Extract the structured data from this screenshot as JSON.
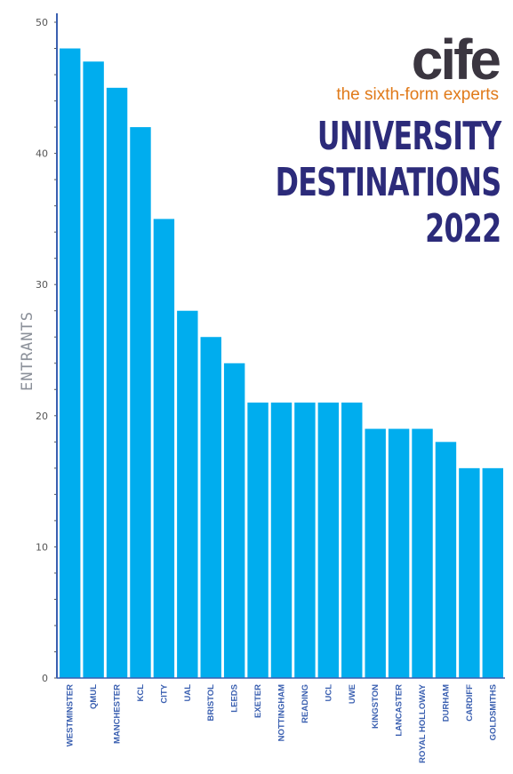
{
  "brand": {
    "logo": "cife",
    "tagline": "the sixth-form experts"
  },
  "headline": {
    "line1": "UNIVERSITY",
    "line2": "DESTINATIONS",
    "line3": "2022"
  },
  "colors": {
    "bar": "#00adee",
    "axis": "#3a5fb0",
    "headline": "#2c2b7a",
    "tagline": "#e07a1a",
    "logo": "#3b3640"
  },
  "chart_data": {
    "type": "bar",
    "ylabel": "ENTRANTS",
    "xlabel": "",
    "ylim": [
      0,
      50
    ],
    "yticks": [
      0,
      10,
      20,
      30,
      40,
      50
    ],
    "grid": false,
    "categories": [
      "WESTMINSTER",
      "QMUL",
      "MANCHESTER",
      "KCL",
      "CITY",
      "UAL",
      "BRISTOL",
      "LEEDS",
      "EXETER",
      "NOTTINGHAM",
      "READING",
      "UCL",
      "UWE",
      "KINGSTON",
      "LANCASTER",
      "ROYAL HOLLOWAY",
      "DURHAM",
      "CARDIFF",
      "GOLDSMITHS"
    ],
    "values": [
      48,
      47,
      45,
      42,
      35,
      28,
      26,
      24,
      21,
      21,
      21,
      21,
      21,
      19,
      19,
      19,
      18,
      16,
      16
    ]
  }
}
